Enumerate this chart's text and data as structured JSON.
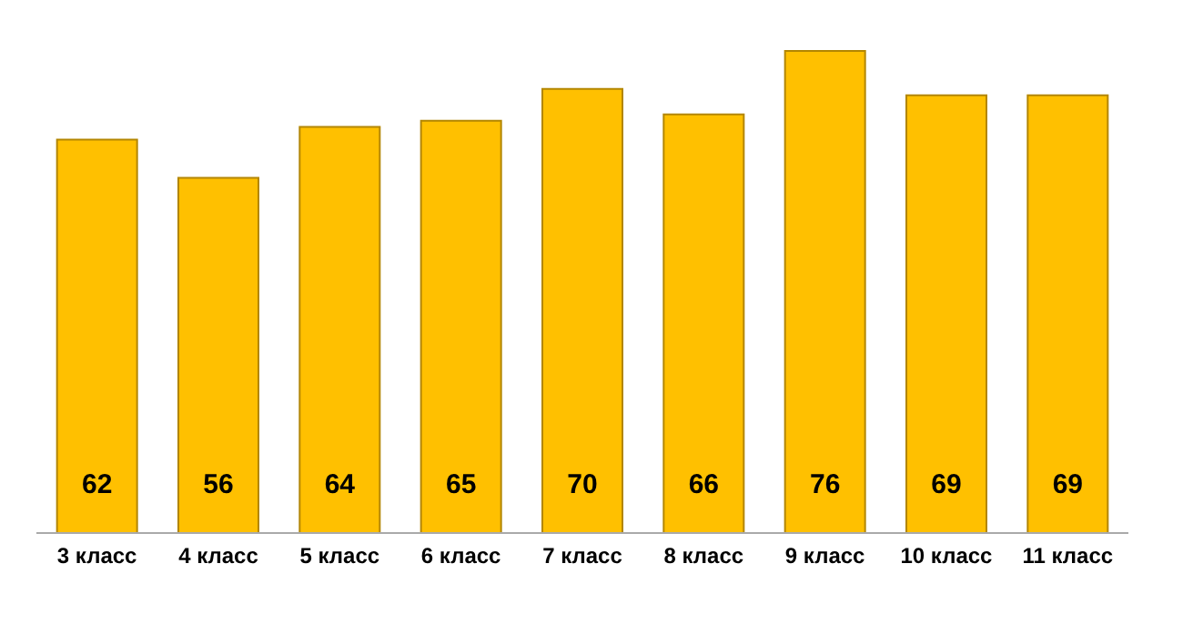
{
  "chart_data": {
    "type": "bar",
    "categories": [
      "3 класс",
      "4 класс",
      "5 класс",
      "6 класс",
      "7 класс",
      "8 класс",
      "9 класс",
      "10 класс",
      "11 класс"
    ],
    "values": [
      62,
      56,
      64,
      65,
      70,
      66,
      76,
      69,
      69
    ],
    "color": "#ffc000",
    "data_labels": true,
    "tick_labels": "x"
  }
}
